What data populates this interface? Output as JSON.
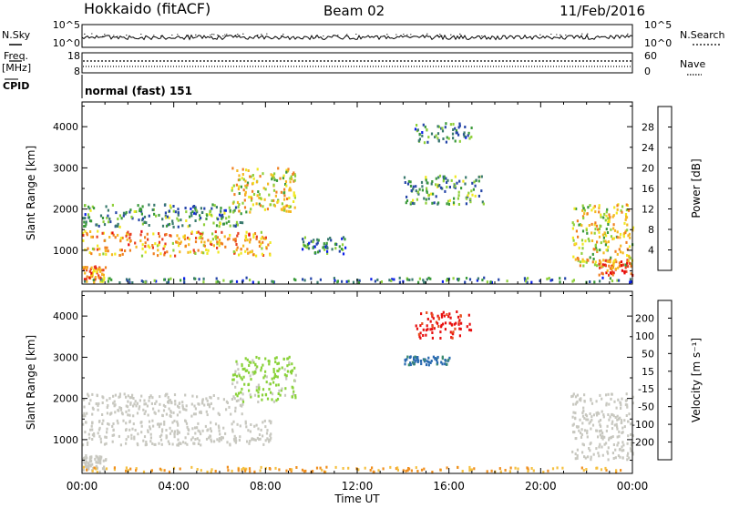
{
  "header": {
    "station": "Hokkaido (fitACF)",
    "beam": "Beam 02",
    "date": "11/Feb/2016"
  },
  "status_panels": {
    "nsky_label": "N.Sky",
    "nsearch_label": "N.Search",
    "noise_left_ticks": [
      "10^5",
      "10^0"
    ],
    "noise_right_ticks": [
      "10^5",
      "10^0"
    ],
    "freq_label_top": "Freq.",
    "freq_label_unit": "[MHz]",
    "freq_ticks": [
      "18",
      "8"
    ],
    "nave_label": "Nave",
    "nave_ticks": [
      "60",
      "0"
    ],
    "cpid_label": "CPID",
    "cpid_value": "normal (fast) 151"
  },
  "time_axis": {
    "label": "Time UT",
    "ticks": [
      "00:00",
      "04:00",
      "08:00",
      "12:00",
      "16:00",
      "20:00",
      "00:00"
    ]
  },
  "chart_data": [
    {
      "type": "heatmap",
      "quantity": "Power",
      "ylabel": "Slant Range [km]",
      "xlabel": "Time UT",
      "xlim_hours": [
        0,
        24
      ],
      "ylim": [
        180,
        4600
      ],
      "yticks": [
        "1000",
        "2000",
        "3000",
        "4000"
      ],
      "colorbar": {
        "label": "Power [dB]",
        "ticks": [
          "4",
          "8",
          "12",
          "16",
          "20",
          "24",
          "28"
        ],
        "colors": [
          "#0a1ee8",
          "#2545a8",
          "#3a7a6e",
          "#3a9a3a",
          "#8fcf3a",
          "#f0e820",
          "#f5b820",
          "#f08020",
          "#e84020",
          "#e80a0a"
        ]
      },
      "regions": [
        {
          "t": [
            0.0,
            8.2
          ],
          "r": [
            850,
            1450
          ],
          "level": 22
        },
        {
          "t": [
            0.0,
            7.0
          ],
          "r": [
            1550,
            2100
          ],
          "level": 10
        },
        {
          "t": [
            6.5,
            9.3
          ],
          "r": [
            1900,
            3000
          ],
          "level": 18
        },
        {
          "t": [
            0.0,
            1.0
          ],
          "r": [
            200,
            600
          ],
          "level": 24
        },
        {
          "t": [
            0.0,
            24.0
          ],
          "r": [
            200,
            320
          ],
          "level": 8
        },
        {
          "t": [
            9.5,
            11.5
          ],
          "r": [
            900,
            1300
          ],
          "level": 9
        },
        {
          "t": [
            14.0,
            17.5
          ],
          "r": [
            2100,
            2800
          ],
          "level": 10
        },
        {
          "t": [
            14.5,
            17.0
          ],
          "r": [
            3600,
            4100
          ],
          "level": 9
        },
        {
          "t": [
            21.3,
            24.0
          ],
          "r": [
            600,
            2100
          ],
          "level": 18
        },
        {
          "t": [
            22.5,
            24.0
          ],
          "r": [
            380,
            750
          ],
          "level": 26
        }
      ]
    },
    {
      "type": "heatmap",
      "quantity": "Velocity",
      "ylabel": "Slant Range [km]",
      "xlabel": "Time UT",
      "xlim_hours": [
        0,
        24
      ],
      "ylim": [
        180,
        4600
      ],
      "yticks": [
        "1000",
        "2000",
        "3000",
        "4000"
      ],
      "colorbar": {
        "label": "Velocity [m s⁻¹]",
        "ticks": [
          "200",
          "100",
          "50",
          "15",
          "-15",
          "-50",
          "-100",
          "-200"
        ],
        "colors": [
          "#1030c8",
          "#2a6ab0",
          "#3a8a6e",
          "#3fa23a",
          "#8ad23a",
          "#c8c8c0",
          "#f5c040",
          "#f09020",
          "#e85020",
          "#e81010"
        ]
      },
      "regions": [
        {
          "t": [
            0.0,
            8.2
          ],
          "r": [
            850,
            1450
          ],
          "v": 0
        },
        {
          "t": [
            0.0,
            7.0
          ],
          "r": [
            1550,
            2100
          ],
          "v": 0
        },
        {
          "t": [
            6.5,
            9.3
          ],
          "r": [
            1900,
            3000
          ],
          "v": 20
        },
        {
          "t": [
            0.0,
            1.0
          ],
          "r": [
            200,
            600
          ],
          "v": 0
        },
        {
          "t": [
            0.0,
            24.0
          ],
          "r": [
            200,
            320
          ],
          "v": -30
        },
        {
          "t": [
            14.5,
            17.0
          ],
          "r": [
            3450,
            4100
          ],
          "v": -180
        },
        {
          "t": [
            14.0,
            16.0
          ],
          "r": [
            2800,
            3000
          ],
          "v": 180
        },
        {
          "t": [
            21.3,
            24.0
          ],
          "r": [
            500,
            2100
          ],
          "v": 0
        }
      ]
    }
  ]
}
